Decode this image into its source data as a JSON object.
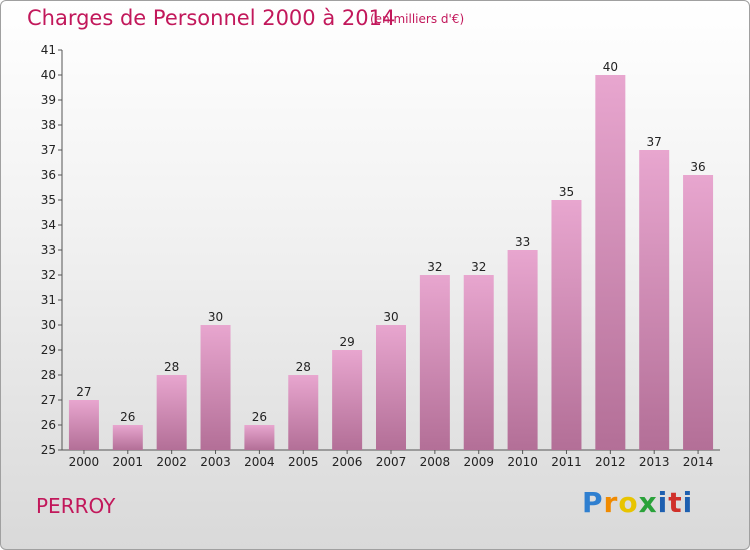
{
  "header": {
    "title": "Charges de Personnel 2000 à 2014",
    "subtitle": "(en milliers d'€)"
  },
  "footer": {
    "place": "PERROY",
    "logo_parts": [
      "P",
      "r",
      "o",
      "x",
      "i",
      "t",
      "i"
    ]
  },
  "colors": {
    "title": "#c2185b",
    "bar_top": "#e8a6cf",
    "bar_bottom": "#b36f97",
    "axis": "#555555"
  },
  "chart_data": {
    "type": "bar",
    "title": "Charges de Personnel 2000 à 2014",
    "subtitle": "(en milliers d'€)",
    "categories": [
      "2000",
      "2001",
      "2002",
      "2003",
      "2004",
      "2005",
      "2006",
      "2007",
      "2008",
      "2009",
      "2010",
      "2011",
      "2012",
      "2013",
      "2014"
    ],
    "values": [
      27,
      26,
      28,
      30,
      26,
      28,
      29,
      30,
      32,
      32,
      33,
      35,
      40,
      37,
      36
    ],
    "ylim": [
      25,
      41
    ],
    "yticks": [
      25,
      26,
      27,
      28,
      29,
      30,
      31,
      32,
      33,
      34,
      35,
      36,
      37,
      38,
      39,
      40,
      41
    ],
    "grid": false,
    "legend": "none"
  }
}
